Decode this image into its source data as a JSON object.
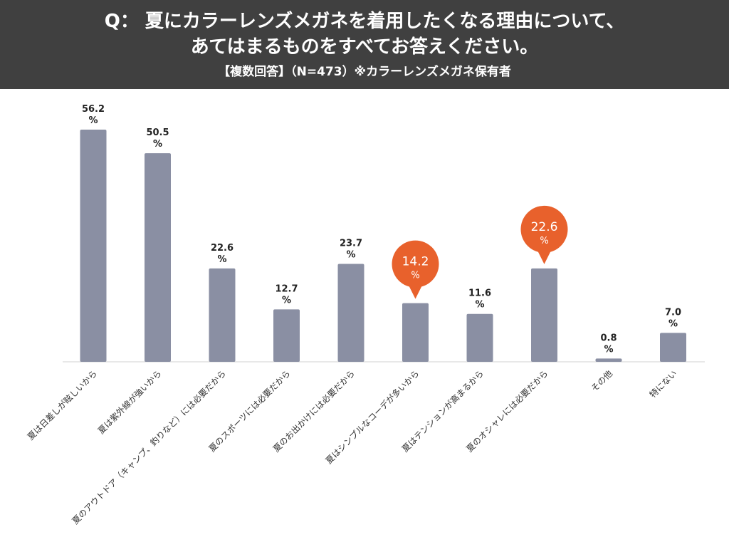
{
  "header": {
    "question_line1": "Q： 夏にカラーレンズメガネを着用したくなる理由について、",
    "question_line2": "あてはまるものをすべてお答えください。",
    "subtitle": "【複数回答】（N=473）※カラーレンズメガネ保有者"
  },
  "colors": {
    "header_bg": "#404040",
    "bar": "#8a8fa3",
    "highlight": "#e8612c"
  },
  "chart_data": {
    "type": "bar",
    "unit": "%",
    "categories": [
      "夏は日差しが眩しいから",
      "夏は紫外線が強いから",
      "夏のアウトドア（キャンプ、釣りなど）には必要だから",
      "夏のスポーツには必要だから",
      "夏のお出かけには必要だから",
      "夏はシンプルなコーデが多いから",
      "夏はテンションが高まるから",
      "夏のオシャレには必要だから",
      "その他",
      "特にない"
    ],
    "values": [
      56.2,
      50.5,
      22.6,
      12.7,
      23.7,
      14.2,
      11.6,
      22.6,
      0.8,
      7.0
    ],
    "value_labels": [
      "56.2",
      "50.5",
      "22.6",
      "12.7",
      "23.7",
      "14.2",
      "11.6",
      "22.6",
      "0.8",
      "7.0"
    ],
    "highlighted": [
      5,
      7
    ],
    "ylim": [
      0,
      60
    ],
    "grid": false
  }
}
